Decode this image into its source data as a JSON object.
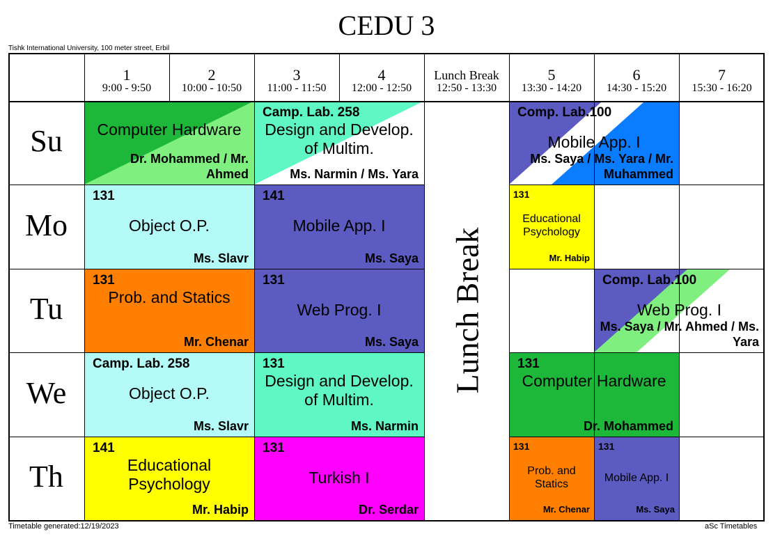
{
  "title": "CEDU 3",
  "address": "Tishk International University, 100 meter street, Erbil",
  "footer": {
    "generated": "Timetable generated:12/19/2023",
    "credit": "aSc Timetables"
  },
  "periods": [
    {
      "num": "1",
      "time": "9:00 - 9:50"
    },
    {
      "num": "2",
      "time": "10:00 - 10:50"
    },
    {
      "num": "3",
      "time": "11:00 - 11:50"
    },
    {
      "num": "4",
      "time": "12:00 - 12:50"
    },
    {
      "num": "Lunch Break",
      "time": "12:50 - 13:30"
    },
    {
      "num": "5",
      "time": "13:30 - 14:20"
    },
    {
      "num": "6",
      "time": "14:30 - 15:20"
    },
    {
      "num": "7",
      "time": "15:30 - 16:20"
    }
  ],
  "days": [
    "Su",
    "Mo",
    "Tu",
    "We",
    "Th"
  ],
  "lunch_label": "Lunch Break",
  "colors": {
    "green": "#1db83a",
    "light_green": "#7ff07f",
    "aqua": "#5ff7c4",
    "light_aqua": "#b4fbf7",
    "indigo": "#5b5bc2",
    "blue": "#0a7cff",
    "yellow": "#ffff00",
    "orange": "#ff8000",
    "magenta": "#ff00ff",
    "grid": "#000000"
  },
  "lessons": [
    {
      "day": 0,
      "start": 0,
      "span": 2,
      "bg": [
        "#1db83a",
        "#7ff07f"
      ],
      "room": "",
      "subject": "Computer Hardware",
      "teacher": "Dr. Mohammed / Mr. Ahmed"
    },
    {
      "day": 0,
      "start": 2,
      "span": 2,
      "bg": [
        "#5ff7c4",
        "#ffffff"
      ],
      "room": "Camp. Lab. 258",
      "subject": "Design and Develop. of Multim.",
      "teacher": "Ms. Narmin / Ms. Yara"
    },
    {
      "day": 0,
      "start": 5,
      "span": 2,
      "bg": [
        "#5b5bc2",
        "#ffffff",
        "#0a7cff"
      ],
      "room": "Comp. Lab.100",
      "subject": "Mobile App. I",
      "teacher": "Ms. Saya / Ms. Yara / Mr. Muhammed"
    },
    {
      "day": 1,
      "start": 0,
      "span": 2,
      "bg": [
        "#b4fbf7"
      ],
      "room": "131",
      "subject": "Object O.P.",
      "teacher": "Ms. Slavr"
    },
    {
      "day": 1,
      "start": 2,
      "span": 2,
      "bg": [
        "#5b5bc2"
      ],
      "room": "141",
      "subject": "Mobile App. I",
      "teacher": "Ms. Saya"
    },
    {
      "day": 1,
      "start": 5,
      "span": 1,
      "bg": [
        "#ffff00"
      ],
      "room": "131",
      "subject": "Educational Psychology",
      "teacher": "Mr. Habip",
      "small": true
    },
    {
      "day": 2,
      "start": 0,
      "span": 2,
      "bg": [
        "#ff8000"
      ],
      "room": "131",
      "subject": "Prob. and Statics",
      "teacher": "Mr. Chenar"
    },
    {
      "day": 2,
      "start": 2,
      "span": 2,
      "bg": [
        "#5b5bc2"
      ],
      "room": "131",
      "subject": "Web Prog. I",
      "teacher": "Ms. Saya"
    },
    {
      "day": 2,
      "start": 6,
      "span": 2,
      "bg": [
        "#5b5bc2",
        "#7ff07f",
        "#ffffff"
      ],
      "room": "Comp. Lab.100",
      "subject": "Web Prog. I",
      "teacher": "Ms. Saya / Mr. Ahmed / Ms. Yara"
    },
    {
      "day": 3,
      "start": 0,
      "span": 2,
      "bg": [
        "#b4fbf7"
      ],
      "room": "Camp. Lab. 258",
      "subject": "Object O.P.",
      "teacher": "Ms. Slavr"
    },
    {
      "day": 3,
      "start": 2,
      "span": 2,
      "bg": [
        "#5ff7c4"
      ],
      "room": "131",
      "subject": "Design and Develop. of Multim.",
      "teacher": "Ms. Narmin"
    },
    {
      "day": 3,
      "start": 5,
      "span": 2,
      "bg": [
        "#1db83a"
      ],
      "room": "131",
      "subject": "Computer Hardware",
      "teacher": "Dr. Mohammed"
    },
    {
      "day": 4,
      "start": 0,
      "span": 2,
      "bg": [
        "#ffff00"
      ],
      "room": "141",
      "subject": "Educational Psychology",
      "teacher": "Mr. Habip"
    },
    {
      "day": 4,
      "start": 2,
      "span": 2,
      "bg": [
        "#ff00ff"
      ],
      "room": "131",
      "subject": "Turkish I",
      "teacher": "Dr. Serdar"
    },
    {
      "day": 4,
      "start": 5,
      "span": 1,
      "bg": [
        "#ff8000"
      ],
      "room": "131",
      "subject": "Prob. and Statics",
      "teacher": "Mr. Chenar",
      "small": true
    },
    {
      "day": 4,
      "start": 6,
      "span": 1,
      "bg": [
        "#5b5bc2"
      ],
      "room": "131",
      "subject": "Mobile App. I",
      "teacher": "Ms. Saya",
      "small": true
    }
  ]
}
